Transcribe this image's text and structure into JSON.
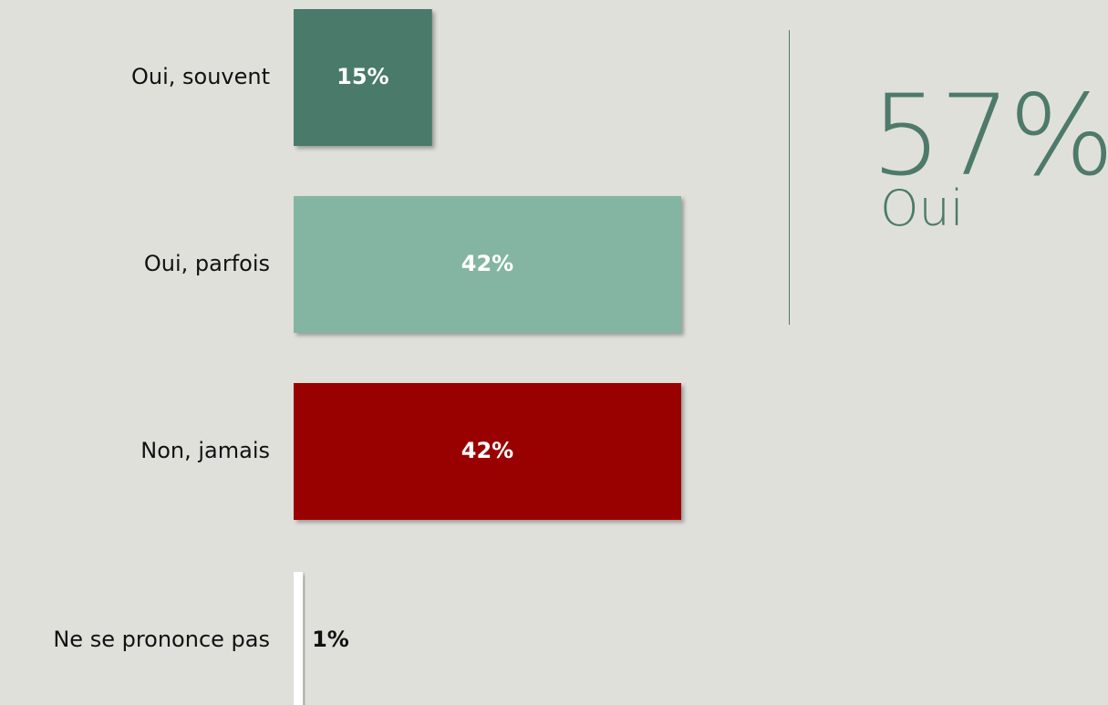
{
  "chart_data": {
    "type": "bar",
    "orientation": "horizontal",
    "categories": [
      "Oui, souvent",
      "Oui, parfois",
      "Non, jamais",
      "Ne se prononce pas"
    ],
    "values": [
      15,
      42,
      42,
      1
    ],
    "data_labels": [
      "15%",
      "42%",
      "42%",
      "1%"
    ],
    "bar_colors": [
      "#4a7a6a",
      "#84b5a2",
      "#990000",
      "#ffffff"
    ],
    "label_colors": [
      "#ffffff",
      "#ffffff",
      "#ffffff",
      "#111111"
    ],
    "xlim": [
      0,
      42
    ],
    "grid": false
  },
  "summary": {
    "value": "57%",
    "label": "Oui",
    "color": "#4d7a6a"
  },
  "colors": {
    "background": "#e0e0db"
  }
}
